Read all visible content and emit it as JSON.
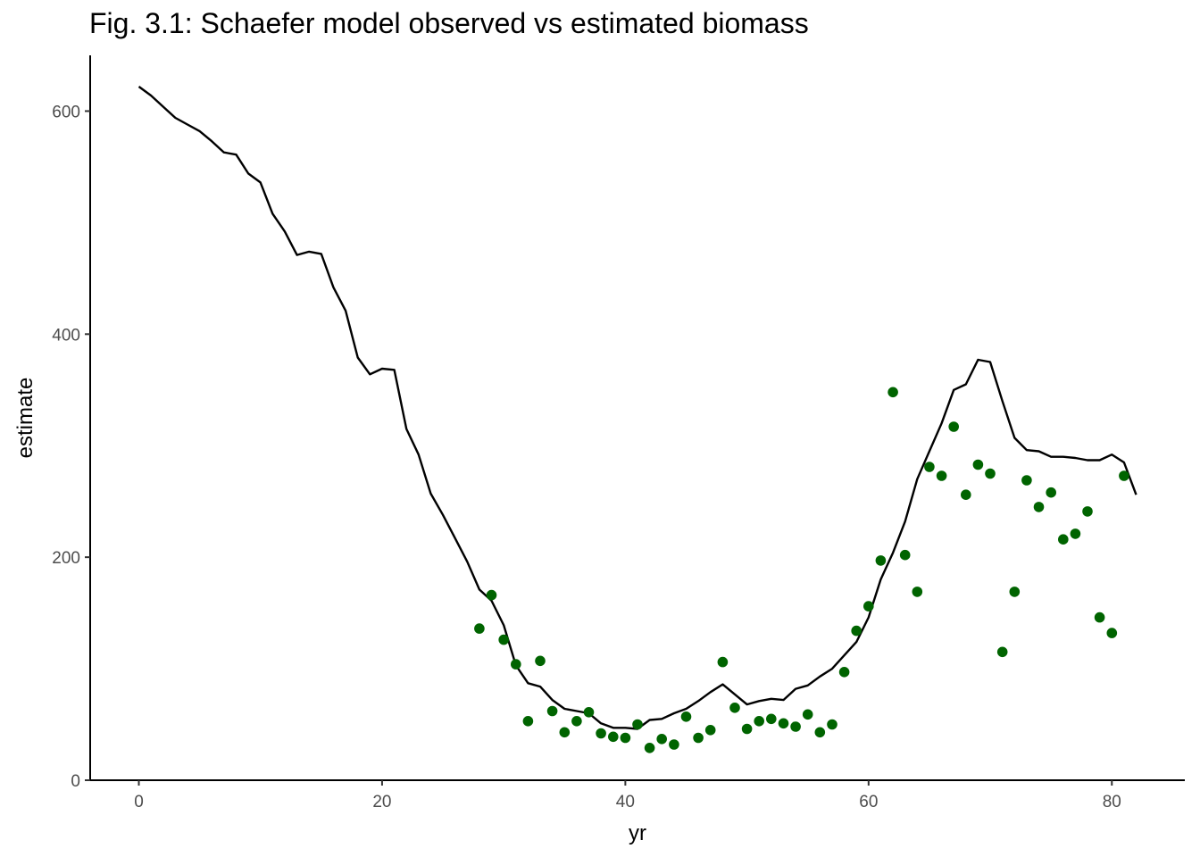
{
  "chart_data": {
    "type": "line",
    "title": "Fig. 3.1: Schaefer model observed vs estimated biomass",
    "xlabel": "yr",
    "ylabel": "estimate",
    "xlim": [
      -4,
      86
    ],
    "ylim": [
      0,
      650
    ],
    "x_ticks": [
      0,
      20,
      40,
      60,
      80
    ],
    "y_ticks": [
      0,
      200,
      400,
      600
    ],
    "grid": false,
    "legend": "none",
    "colors": {
      "line": "#000000",
      "points": "#006400",
      "axis": "#000000",
      "tick_text": "#4d4d4d"
    },
    "series": [
      {
        "kind": "line",
        "x": [
          0,
          1,
          2,
          3,
          4,
          5,
          6,
          7,
          8,
          9,
          10,
          11,
          12,
          13,
          14,
          15,
          16,
          17,
          18,
          19,
          20,
          21,
          22,
          23,
          24,
          25,
          26,
          27,
          28,
          29,
          30,
          31,
          32,
          33,
          34,
          35,
          36,
          37,
          38,
          39,
          40,
          41,
          42,
          43,
          44,
          45,
          46,
          47,
          48,
          49,
          50,
          51,
          52,
          53,
          54,
          55,
          56,
          57,
          58,
          59,
          60,
          61,
          62,
          63,
          64,
          65,
          66,
          67,
          68,
          69,
          70,
          71,
          72,
          73,
          74,
          75,
          76,
          77,
          78,
          79,
          80,
          81,
          82
        ],
        "y": [
          622,
          614,
          604,
          594,
          588,
          582,
          573,
          563,
          561,
          544,
          536,
          508,
          492,
          471,
          474,
          472,
          442,
          421,
          379,
          364,
          369,
          368,
          315,
          292,
          257,
          238,
          217,
          196,
          171,
          161,
          139,
          103,
          87,
          84,
          72,
          64,
          62,
          60,
          51,
          47,
          47,
          46,
          54,
          55,
          60,
          64,
          71,
          79,
          86,
          77,
          68,
          71,
          73,
          72,
          82,
          85,
          93,
          100,
          112,
          124,
          146,
          180,
          204,
          232,
          270,
          295,
          320,
          350,
          355,
          377,
          375,
          340,
          307,
          296,
          295,
          290,
          290,
          289,
          287,
          287,
          292,
          285,
          256
        ]
      },
      {
        "kind": "scatter",
        "x": [
          28,
          29,
          30,
          31,
          32,
          33,
          34,
          35,
          36,
          37,
          38,
          39,
          40,
          41,
          42,
          43,
          44,
          45,
          46,
          47,
          48,
          49,
          50,
          51,
          52,
          53,
          54,
          55,
          56,
          57,
          58,
          59,
          60,
          61,
          62,
          63,
          64,
          65,
          66,
          67,
          68,
          69,
          70,
          71,
          72,
          73,
          74,
          75,
          76,
          77,
          78,
          79,
          80,
          81
        ],
        "y": [
          136,
          166,
          126,
          104,
          53,
          107,
          62,
          43,
          53,
          61,
          42,
          39,
          38,
          50,
          29,
          37,
          32,
          57,
          38,
          45,
          106,
          65,
          46,
          53,
          55,
          51,
          48,
          59,
          43,
          50,
          97,
          134,
          156,
          197,
          348,
          202,
          169,
          281,
          273,
          317,
          256,
          283,
          275,
          115,
          169,
          269,
          245,
          258,
          216,
          221,
          241,
          146,
          132,
          273
        ]
      }
    ]
  }
}
